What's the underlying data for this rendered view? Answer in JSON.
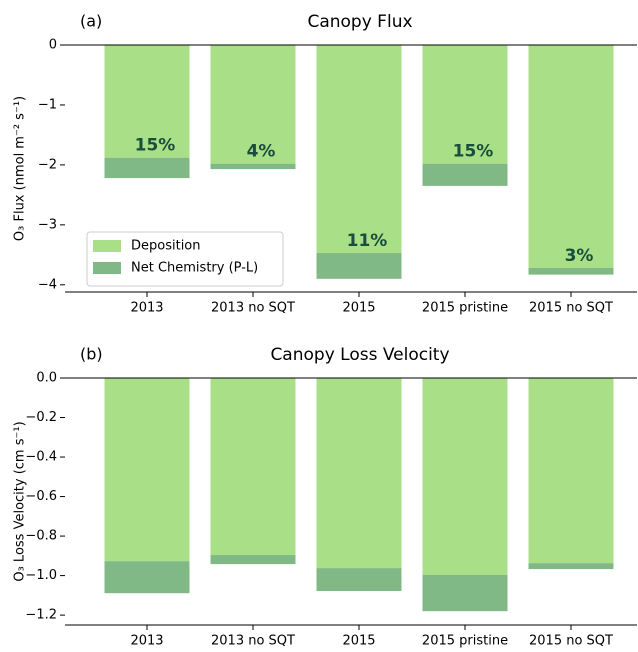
{
  "chart_data": [
    {
      "type": "stacked_bar",
      "panel_label": "(a)",
      "title": "Canopy Flux",
      "y_label": "O₃ Flux (nmol m⁻² s⁻¹)",
      "categories": [
        "2013",
        "2013 no SQT",
        "2015",
        "2015 pristine",
        "2015 no SQT"
      ],
      "series": [
        {
          "name": "Deposition",
          "color": "#a8df87",
          "values": [
            -1.88,
            -1.98,
            -3.47,
            -1.98,
            -3.72
          ]
        },
        {
          "name": "Net Chemistry (P-L)",
          "color": "#80b985",
          "values": [
            -0.34,
            -0.09,
            -0.43,
            -0.37,
            -0.11
          ]
        }
      ],
      "annotations": [
        "15%",
        "4%",
        "11%",
        "15%",
        "3%"
      ],
      "ylim": [
        -4.12,
        0
      ],
      "yticks": [
        {
          "value": 0,
          "label": "0"
        },
        {
          "value": -1,
          "label": "−1"
        },
        {
          "value": -2,
          "label": "−2"
        },
        {
          "value": -3,
          "label": "−3"
        },
        {
          "value": -4,
          "label": "−4"
        }
      ],
      "legend": "lower left"
    },
    {
      "type": "stacked_bar",
      "panel_label": "(b)",
      "title": "Canopy Loss Velocity",
      "y_label": "O₃ Loss Velocity (cm s⁻¹)",
      "categories": [
        "2013",
        "2013 no SQT",
        "2015",
        "2015 pristine",
        "2015 no SQT"
      ],
      "series": [
        {
          "color": "#a8df87",
          "values": [
            -0.927,
            -0.896,
            -0.962,
            -0.997,
            -0.937
          ]
        },
        {
          "color": "#80b985",
          "values": [
            -0.162,
            -0.046,
            -0.116,
            -0.183,
            -0.03
          ]
        }
      ],
      "ylim": [
        -1.25,
        0
      ],
      "yticks": [
        {
          "value": 0,
          "label": "0.0"
        },
        {
          "value": -0.2,
          "label": "−0.2"
        },
        {
          "value": -0.4,
          "label": "−0.4"
        },
        {
          "value": -0.6,
          "label": "−0.6"
        },
        {
          "value": -0.8,
          "label": "−0.8"
        },
        {
          "value": -1.0,
          "label": "−1.0"
        },
        {
          "value": -1.2,
          "label": "−1.2"
        }
      ]
    }
  ]
}
